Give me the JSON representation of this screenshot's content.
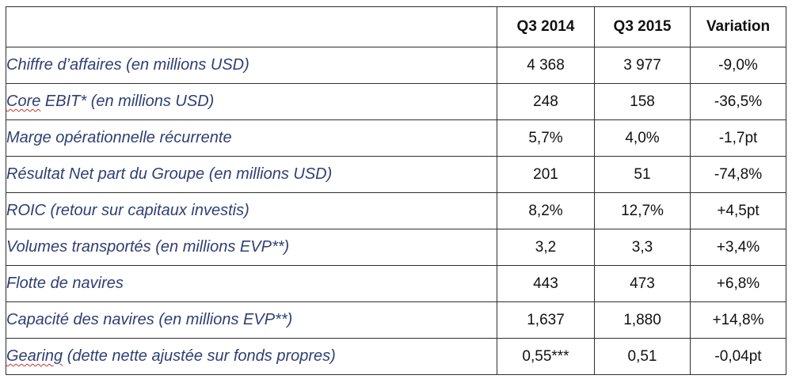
{
  "table": {
    "headers": [
      "",
      "Q3 2014",
      "Q3 2015",
      "Variation"
    ],
    "rows": [
      {
        "label": "Chiffre d’affaires (en millions USD)",
        "q3_2014": "4 368",
        "q3_2015": "3 977",
        "variation": "-9,0%"
      },
      {
        "label_prefix": "Core",
        "label_rest": " EBIT* (en millions USD)",
        "q3_2014": "248",
        "q3_2015": "158",
        "variation": "-36,5%"
      },
      {
        "label": "Marge opérationnelle récurrente",
        "q3_2014": "5,7%",
        "q3_2015": "4,0%",
        "variation": "-1,7pt"
      },
      {
        "label": "Résultat Net part du Groupe (en millions USD)",
        "q3_2014": "201",
        "q3_2015": "51",
        "variation": "-74,8%"
      },
      {
        "label": "ROIC (retour sur capitaux investis)",
        "q3_2014": "8,2%",
        "q3_2015": "12,7%",
        "variation": "+4,5pt"
      },
      {
        "label": "Volumes transportés (en millions EVP**)",
        "q3_2014": "3,2",
        "q3_2015": "3,3",
        "variation": "+3,4%"
      },
      {
        "label": "Flotte de navires",
        "q3_2014": "443",
        "q3_2015": "473",
        "variation": "+6,8%"
      },
      {
        "label": "Capacité des navires (en millions EVP**)",
        "q3_2014": "1,637",
        "q3_2015": "1,880",
        "variation": "+14,8%"
      },
      {
        "label_prefix": "Gearing",
        "label_rest": " (dette nette ajustée sur fonds propres)",
        "q3_2014": "0,55***",
        "q3_2015": "0,51",
        "variation": "-0,04pt"
      }
    ]
  }
}
